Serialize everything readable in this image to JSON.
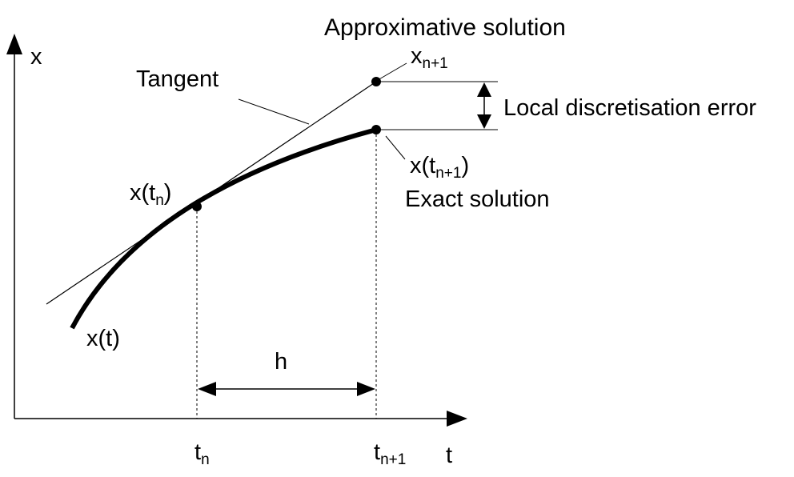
{
  "labels": {
    "approx_solution": "Approximative solution",
    "x_axis": "t",
    "y_axis": "x",
    "tangent": "Tangent",
    "xnp1_base": "x",
    "xnp1_sub": "n+1",
    "local_error": "Local discretisation error",
    "xtnp1_a": "x(t",
    "xtnp1_sub": "n+1",
    "xtnp1_b": ")",
    "exact_solution": "Exact solution",
    "xtn_a": "x(t",
    "xtn_sub": "n",
    "xtn_b": ")",
    "curve": "x(t)",
    "step": "h",
    "tn_base": "t",
    "tn_sub": "n",
    "tnp1_base": "t",
    "tnp1_sub": "n+1"
  },
  "colors": {
    "ink": "#000000",
    "background": "#ffffff"
  }
}
